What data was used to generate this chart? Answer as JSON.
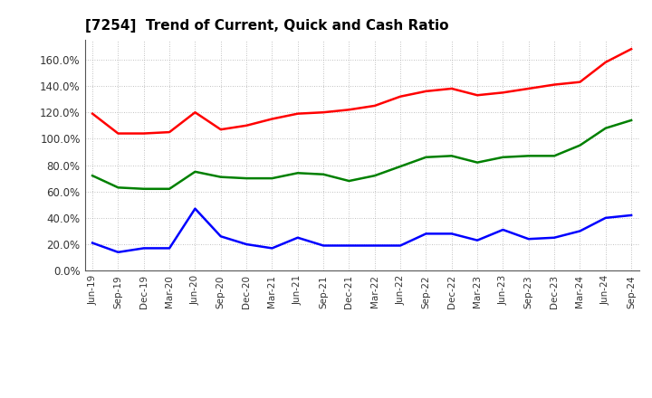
{
  "title": "[7254]  Trend of Current, Quick and Cash Ratio",
  "labels": [
    "Jun-19",
    "Sep-19",
    "Dec-19",
    "Mar-20",
    "Jun-20",
    "Sep-20",
    "Dec-20",
    "Mar-21",
    "Jun-21",
    "Sep-21",
    "Dec-21",
    "Mar-22",
    "Jun-22",
    "Sep-22",
    "Dec-22",
    "Mar-23",
    "Jun-23",
    "Sep-23",
    "Dec-23",
    "Mar-24",
    "Jun-24",
    "Sep-24"
  ],
  "current_ratio": [
    119,
    104,
    104,
    105,
    120,
    107,
    110,
    115,
    119,
    120,
    122,
    125,
    132,
    136,
    138,
    133,
    135,
    138,
    141,
    143,
    158,
    168
  ],
  "quick_ratio": [
    72,
    63,
    62,
    62,
    75,
    71,
    70,
    70,
    74,
    73,
    68,
    72,
    79,
    86,
    87,
    82,
    86,
    87,
    87,
    95,
    108,
    114
  ],
  "cash_ratio": [
    21,
    14,
    17,
    17,
    47,
    26,
    20,
    17,
    25,
    19,
    19,
    19,
    19,
    28,
    28,
    23,
    31,
    24,
    25,
    30,
    40,
    42
  ],
  "current_color": "#FF0000",
  "quick_color": "#008000",
  "cash_color": "#0000FF",
  "ylim": [
    0,
    175
  ],
  "yticks": [
    0,
    20,
    40,
    60,
    80,
    100,
    120,
    140,
    160
  ],
  "background_color": "#FFFFFF",
  "grid_color": "#999999"
}
